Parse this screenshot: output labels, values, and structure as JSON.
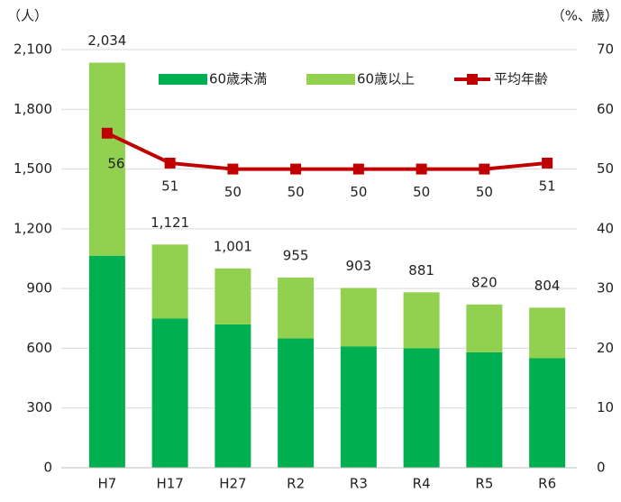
{
  "chart_data": {
    "type": "bar",
    "stacked": true,
    "y_unit": "（人）",
    "y2_unit": "（%、歳）",
    "categories": [
      "H7",
      "H17",
      "H27",
      "R2",
      "R3",
      "R4",
      "R5",
      "R6"
    ],
    "series": [
      {
        "name": "60歳未満",
        "color": "#00b050",
        "values": [
          1065,
          750,
          720,
          650,
          610,
          600,
          580,
          550
        ]
      },
      {
        "name": "60歳以上",
        "color": "#92d050",
        "values": [
          969,
          371,
          281,
          305,
          293,
          281,
          240,
          254
        ]
      },
      {
        "name": "平均年齢",
        "color": "#c00000",
        "type": "line",
        "axis": "y2",
        "values": [
          56,
          51,
          50,
          50,
          50,
          50,
          50,
          51
        ]
      }
    ],
    "totals": [
      {
        "value": 2034,
        "label": "2,034"
      },
      {
        "value": 1121,
        "label": "1,121"
      },
      {
        "value": 1001,
        "label": "1,001"
      },
      955,
      903,
      881,
      820,
      804
    ],
    "ylim": [
      0,
      2100
    ],
    "yticks": [
      0,
      300,
      600,
      900,
      {
        "value": 1200,
        "label": "1,200"
      },
      {
        "value": 1500,
        "label": "1,500"
      },
      {
        "value": 1800,
        "label": "1,800"
      },
      {
        "value": 2100,
        "label": "2,100"
      }
    ],
    "y2lim": [
      0,
      70
    ],
    "y2ticks": [
      0,
      10,
      20,
      30,
      40,
      50,
      60,
      70
    ],
    "grid": true,
    "legend": "top"
  }
}
